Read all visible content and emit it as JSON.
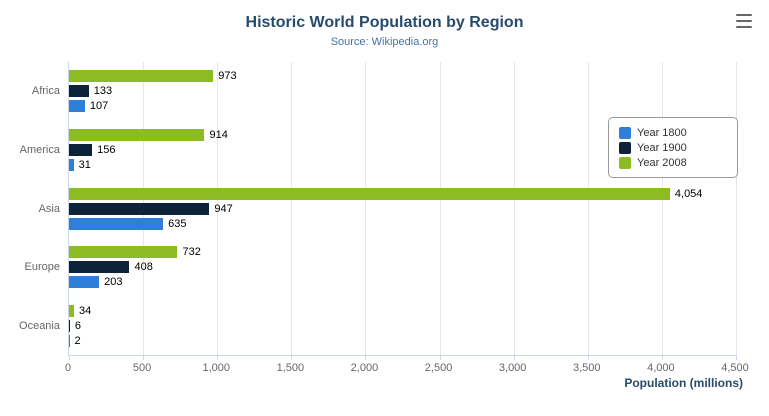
{
  "title": "Historic World Population by Region",
  "subtitle": "Source: Wikipedia.org",
  "xaxis_title": "Population (millions)",
  "menu_icon": "hamburger-icon",
  "chart_data": {
    "type": "bar",
    "orientation": "horizontal",
    "categories": [
      "Africa",
      "America",
      "Asia",
      "Europe",
      "Oceania"
    ],
    "series": [
      {
        "name": "Year 1800",
        "color": "#2f7ed8",
        "values": [
          107,
          31,
          635,
          203,
          2
        ]
      },
      {
        "name": "Year 1900",
        "color": "#0d233a",
        "values": [
          133,
          156,
          947,
          408,
          6
        ]
      },
      {
        "name": "Year 2008",
        "color": "#8bbc21",
        "values": [
          973,
          914,
          4054,
          732,
          34
        ]
      }
    ],
    "series_order_top_to_bottom": [
      "Year 2008",
      "Year 1900",
      "Year 1800"
    ],
    "data_labels_visible": true,
    "title": "Historic World Population by Region",
    "subtitle": "Source: Wikipedia.org",
    "xlabel": "Population (millions)",
    "ylabel": "",
    "xlim": [
      0,
      4500
    ],
    "ticks": [
      0,
      500,
      1000,
      1500,
      2000,
      2500,
      3000,
      3500,
      4000,
      4500
    ],
    "tick_labels": [
      "0",
      "500",
      "1,000",
      "1,500",
      "2,000",
      "2,500",
      "3,000",
      "3,500",
      "4,000",
      "4,500"
    ],
    "grid": true,
    "legend_position": "right",
    "legend_entries": [
      "Year 1800",
      "Year 1900",
      "Year 2008"
    ]
  }
}
